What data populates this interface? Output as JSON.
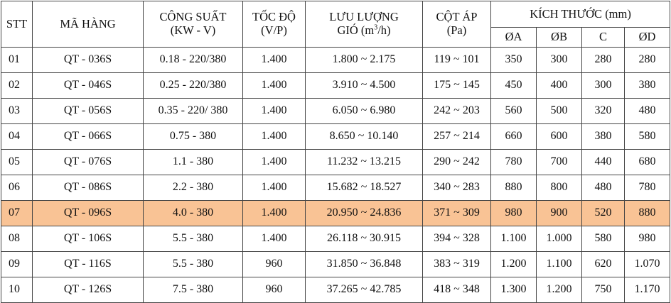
{
  "headers": {
    "stt": "STT",
    "ma_hang": "MÃ HÀNG",
    "cong_suat": "CÔNG SUẤT",
    "cong_suat_unit": "(KW - V)",
    "toc_do": "TỐC ĐỘ",
    "toc_do_unit": "(V/P)",
    "luu_luong": "LƯU LƯỢNG",
    "luu_luong_unit_pre": "GIÓ (m",
    "luu_luong_unit_sup": "3",
    "luu_luong_unit_post": "/h)",
    "cot_ap": "CỘT ÁP",
    "cot_ap_unit": "(Pa)",
    "kich_thuoc": "KÍCH THƯỚC (mm)",
    "dim_a": "ØA",
    "dim_b": "ØB",
    "dim_c": "C",
    "dim_d": "ØD"
  },
  "highlight_color": "#f9c395",
  "rows": [
    {
      "stt": "01",
      "ma": "QT - 036S",
      "cs": "0.18 - 220/380",
      "td": "1.400",
      "ll": "1.800 ~ 2.175",
      "ca": "119 ~ 101",
      "a": "350",
      "b": "300",
      "c": "280",
      "d": "280"
    },
    {
      "stt": "02",
      "ma": "QT - 046S",
      "cs": "0.25 - 220/380",
      "td": "1.400",
      "ll": "3.910 ~ 4.500",
      "ca": "175 ~ 145",
      "a": "450",
      "b": "400",
      "c": "300",
      "d": "380"
    },
    {
      "stt": "03",
      "ma": "QT - 056S",
      "cs": "0.35 - 220/ 380",
      "td": "1.400",
      "ll": "6.050 ~ 6.980",
      "ca": "242 ~ 203",
      "a": "560",
      "b": "500",
      "c": "320",
      "d": "480"
    },
    {
      "stt": "04",
      "ma": "QT - 066S",
      "cs": "0.75 - 380",
      "td": "1.400",
      "ll": "8.650 ~ 10.140",
      "ca": "257 ~ 214",
      "a": "660",
      "b": "600",
      "c": "380",
      "d": "580"
    },
    {
      "stt": "05",
      "ma": "QT - 076S",
      "cs": "1.1 - 380",
      "td": "1.400",
      "ll": "11.232 ~ 13.215",
      "ca": "290 ~ 242",
      "a": "780",
      "b": "700",
      "c": "440",
      "d": "680"
    },
    {
      "stt": "06",
      "ma": "QT - 086S",
      "cs": "2.2 - 380",
      "td": "1.400",
      "ll": "15.682 ~ 18.527",
      "ca": "340 ~ 283",
      "a": "880",
      "b": "800",
      "c": "480",
      "d": "780"
    },
    {
      "stt": "07",
      "ma": "QT - 096S",
      "cs": "4.0  - 380",
      "td": "1.400",
      "ll": "20.950 ~ 24.836",
      "ca": "371 ~ 309",
      "a": "980",
      "b": "900",
      "c": "520",
      "d": "880"
    },
    {
      "stt": "08",
      "ma": "QT - 106S",
      "cs": "5.5 - 380",
      "td": "1.400",
      "ll": "26.118 ~ 30.915",
      "ca": "394 ~ 328",
      "a": "1.100",
      "b": "1.000",
      "c": "580",
      "d": "980"
    },
    {
      "stt": "09",
      "ma": "QT - 116S",
      "cs": "5.5 - 380",
      "td": "960",
      "ll": "31.850 ~ 36.848",
      "ca": "383 ~ 319",
      "a": "1.200",
      "b": "1.100",
      "c": "620",
      "d": "1.070"
    },
    {
      "stt": "10",
      "ma": "QT - 126S",
      "cs": "7.5 - 380",
      "td": "960",
      "ll": "37.265 ~ 42.785",
      "ca": "418 ~ 348",
      "a": "1.300",
      "b": "1.200",
      "c": "750",
      "d": "1.170"
    }
  ]
}
